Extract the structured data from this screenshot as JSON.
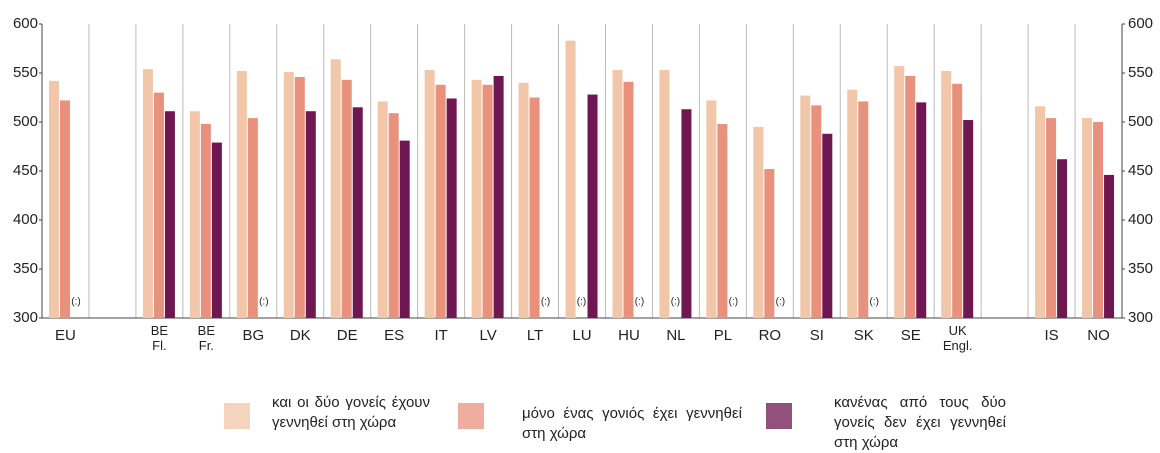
{
  "chart_data": {
    "type": "bar",
    "categories": [
      "EU",
      null,
      "BE Fl.",
      "BE Fr.",
      "BG",
      "DK",
      "DE",
      "ES",
      "IT",
      "LV",
      "LT",
      "LU",
      "HU",
      "NL",
      "PL",
      "RO",
      "SI",
      "SK",
      "SE",
      "UK Engl.",
      null,
      "IS",
      "NO"
    ],
    "series": [
      {
        "name": "και οι δύο γονείς έχουν γεννηθεί στη χώρα",
        "color": "#f2c6a8",
        "values": [
          542,
          null,
          554,
          511,
          552,
          551,
          564,
          521,
          553,
          543,
          540,
          583,
          553,
          553,
          522,
          495,
          527,
          533,
          557,
          552,
          null,
          516,
          504
        ],
        "value_labels": [
          null,
          null,
          null,
          null,
          null,
          null,
          null,
          null,
          null,
          null,
          null,
          null,
          null,
          null,
          null,
          null,
          null,
          null,
          null,
          null,
          null,
          null,
          null
        ]
      },
      {
        "name": "μόνο ένας γονιός έχει γεννηθεί στη χώρα",
        "color": "#e8917d",
        "values": [
          522,
          null,
          530,
          498,
          504,
          546,
          543,
          509,
          538,
          538,
          525,
          null,
          541,
          null,
          498,
          452,
          517,
          521,
          547,
          539,
          null,
          504,
          500
        ],
        "value_labels": [
          null,
          null,
          null,
          null,
          null,
          null,
          null,
          null,
          null,
          null,
          null,
          "(:)",
          null,
          "(:)",
          null,
          null,
          null,
          null,
          null,
          null,
          null,
          null,
          null
        ]
      },
      {
        "name": "κανένας από τους δύο γονείς δεν έχει γεννηθεί στη χώρα",
        "color": "#6e1750",
        "values": [
          null,
          null,
          511,
          479,
          null,
          511,
          515,
          481,
          524,
          547,
          null,
          528,
          null,
          513,
          null,
          null,
          488,
          null,
          520,
          502,
          null,
          462,
          446
        ],
        "value_labels": [
          "(:)",
          null,
          null,
          null,
          "(:)",
          null,
          null,
          null,
          null,
          null,
          "(:)",
          null,
          "(:)",
          null,
          "(:)",
          "(:)",
          null,
          "(:)",
          null,
          null,
          null,
          null,
          null
        ]
      }
    ],
    "ylim": [
      300,
      600
    ],
    "yticks": [
      300,
      350,
      400,
      450,
      500,
      550,
      600
    ]
  }
}
